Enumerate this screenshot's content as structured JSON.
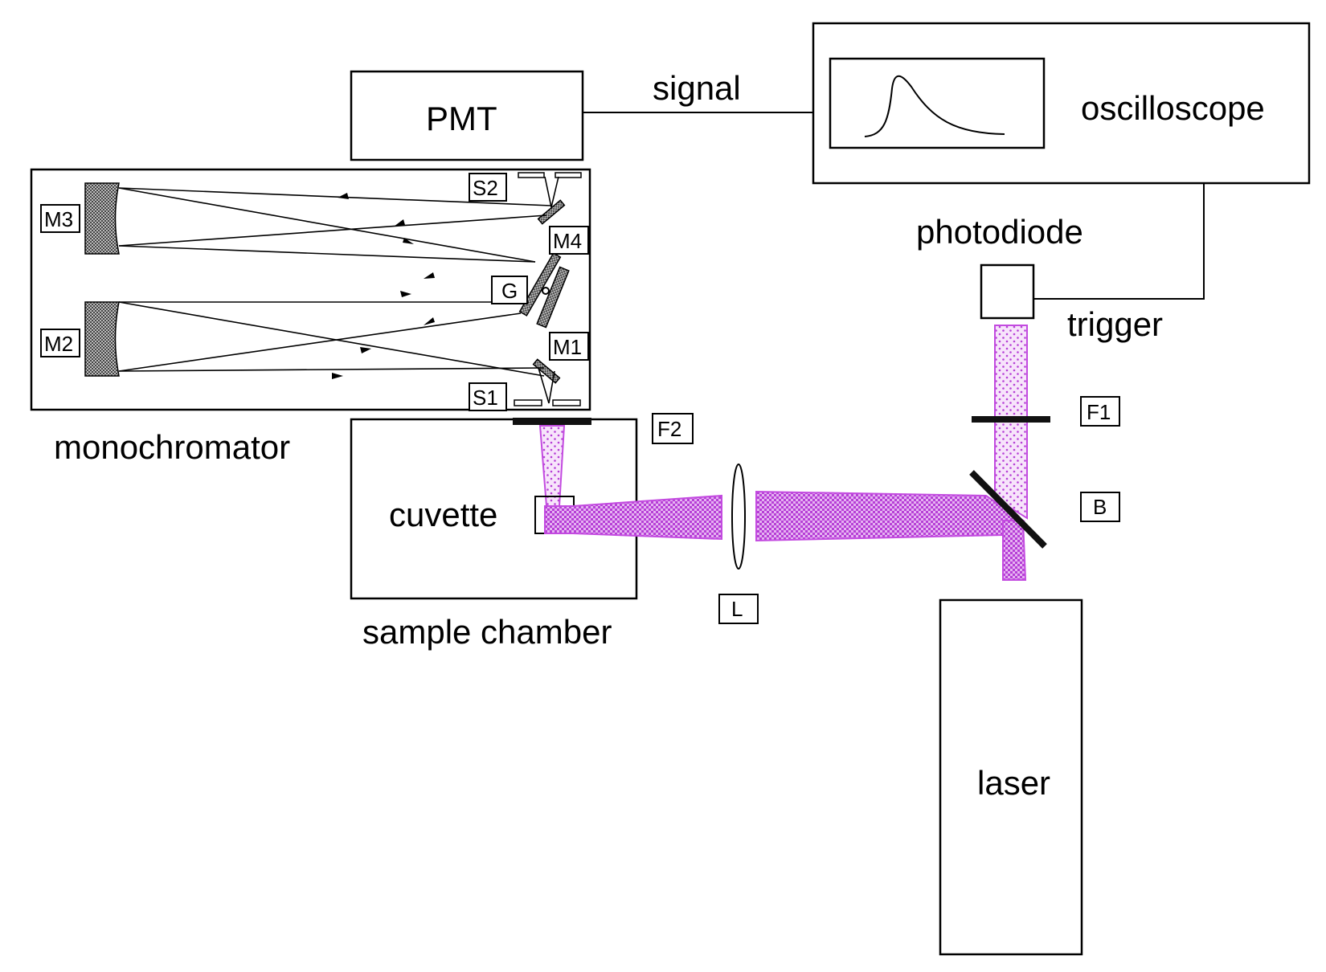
{
  "components": {
    "pmt": "PMT",
    "oscilloscope": "oscilloscope",
    "photodiode": "photodiode",
    "monochromator": "monochromator",
    "sample_chamber": "sample chamber",
    "cuvette": "cuvette",
    "laser": "laser"
  },
  "connections": {
    "signal": "signal",
    "trigger": "trigger"
  },
  "optical_labels": {
    "m1": "M1",
    "m2": "M2",
    "m3": "M3",
    "m4": "M4",
    "g": "G",
    "s1": "S1",
    "s2": "S2",
    "f1": "F1",
    "f2": "F2",
    "b": "B",
    "l": "L"
  },
  "colors": {
    "beam": "#c34be0"
  }
}
